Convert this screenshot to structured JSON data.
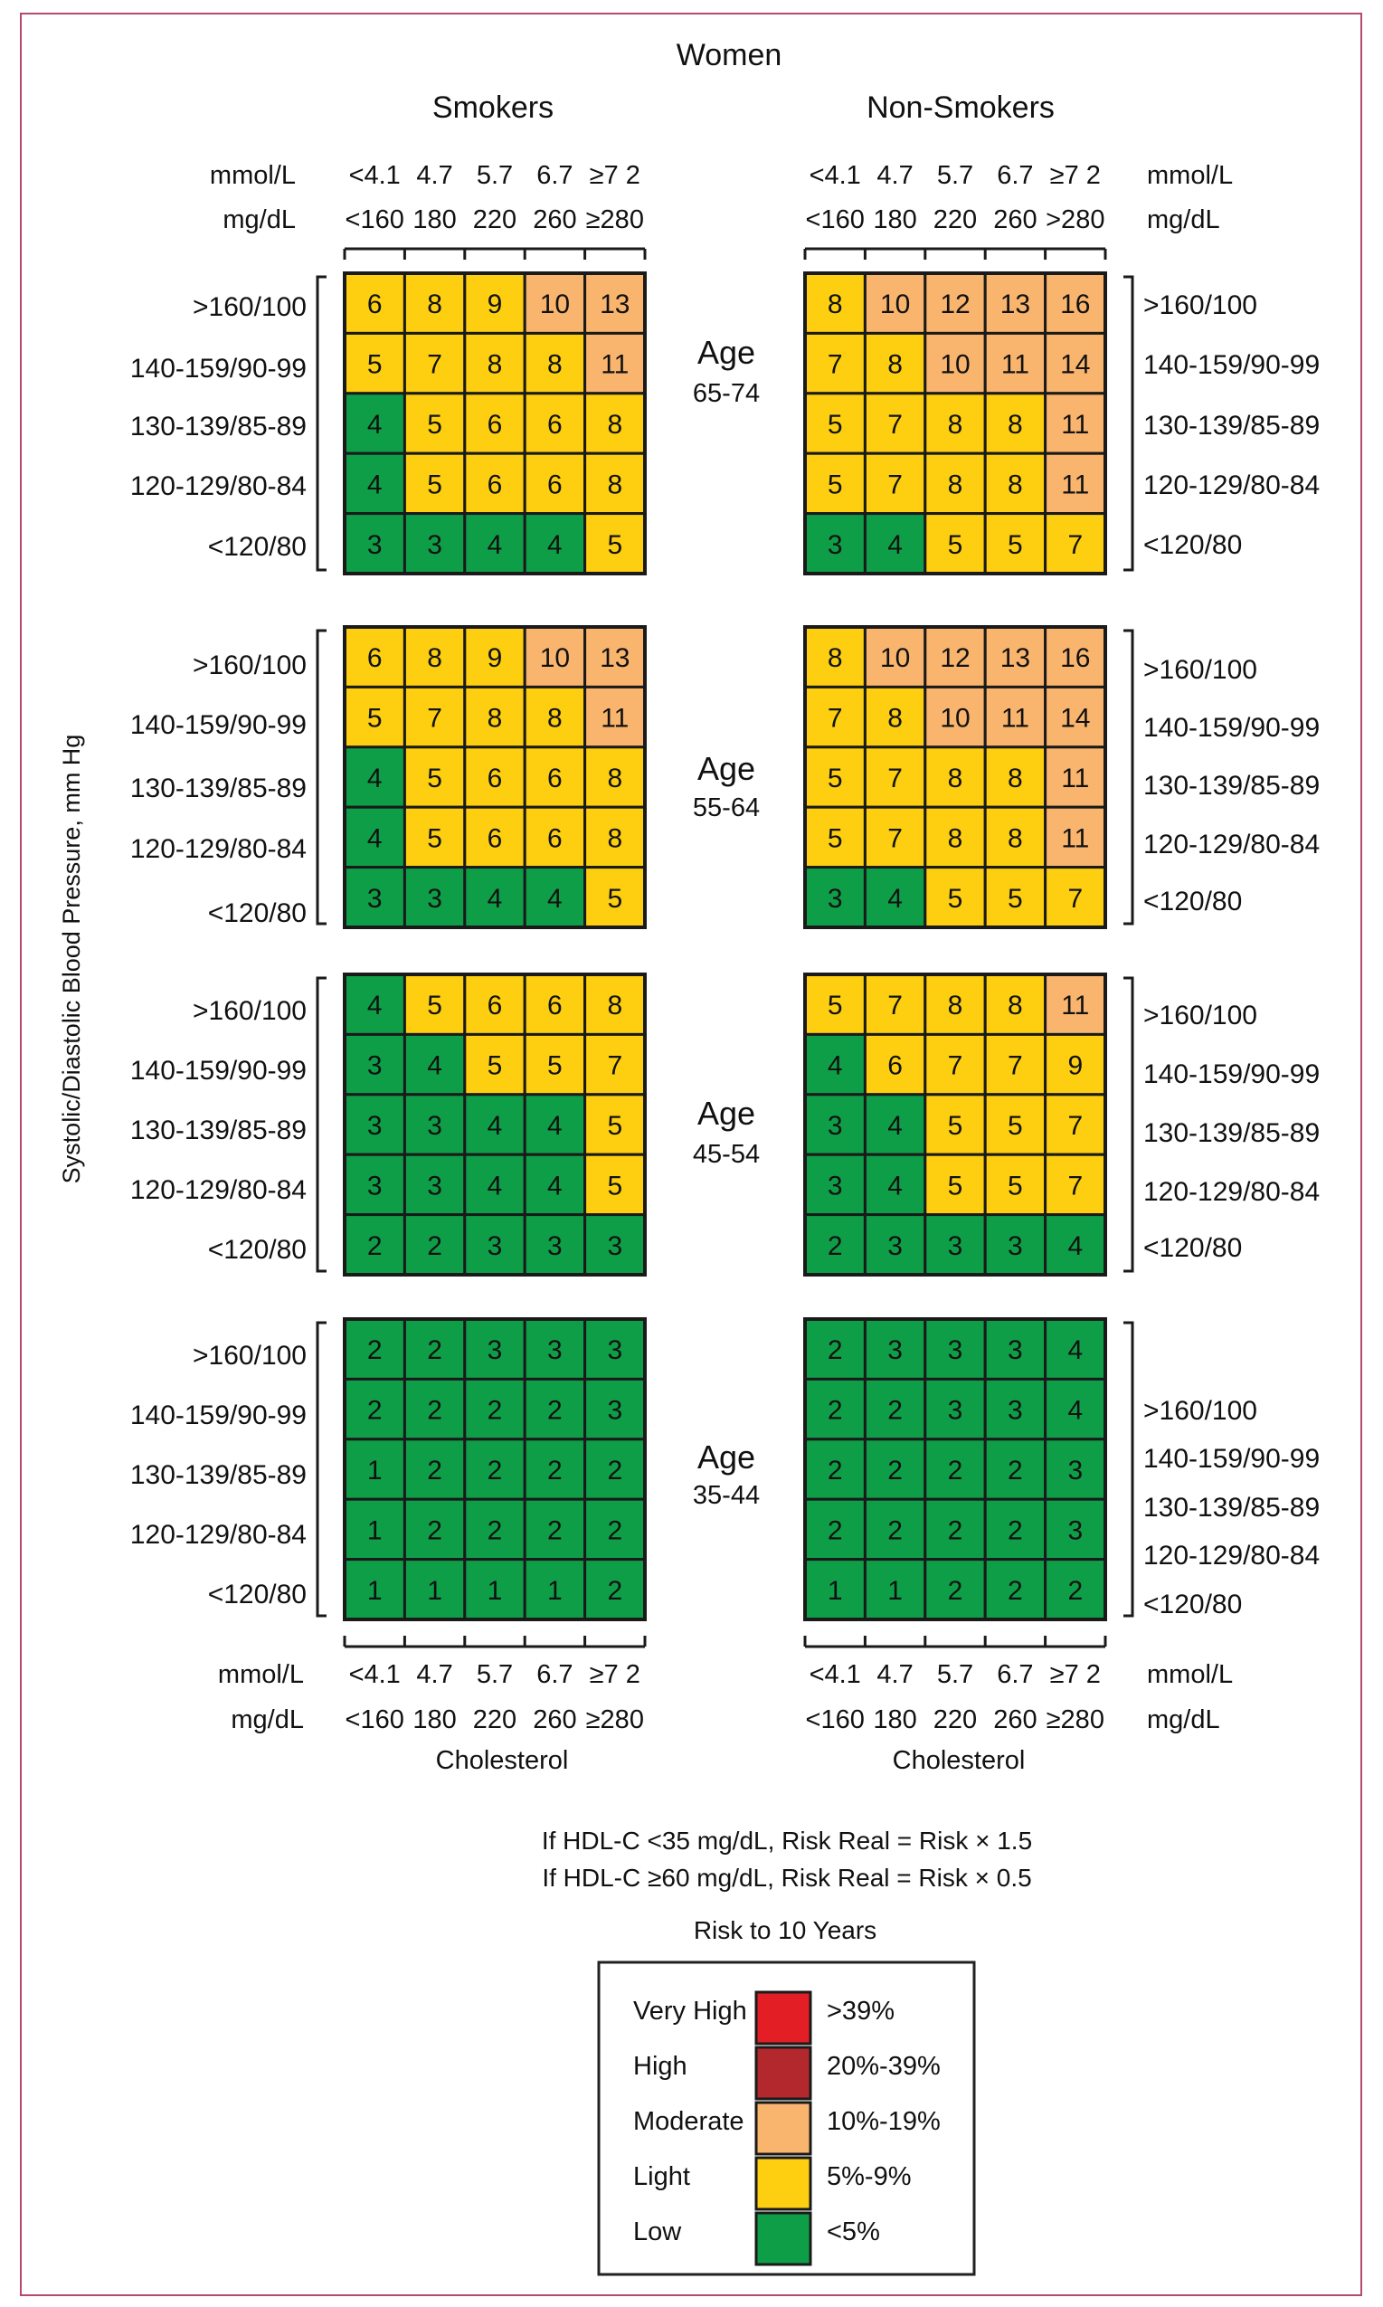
{
  "title": "Women",
  "panel_titles": {
    "smokers": "Smokers",
    "non_smokers": "Non-Smokers"
  },
  "y_axis_label": "Systolic/Diastolic Blood Pressure, mm Hg",
  "x_axis_label": "Cholesterol",
  "units": {
    "mmol": "mmol/L",
    "mgdl": "mg/dL"
  },
  "mmol_ticks": [
    "<4.1",
    "4.7",
    "5.7",
    "6.7",
    "≥7 2"
  ],
  "mgdl_ticks": [
    "<160",
    "180",
    "220",
    "260",
    "≥280"
  ],
  "mgdl_ticks_top_nonsmokers": [
    "<160",
    "180",
    "220",
    "260",
    ">280"
  ],
  "bp_rows": [
    ">160/100",
    "140-159/90-99",
    "130-139/85-89",
    "120-129/80-84",
    "<120/80"
  ],
  "age_word": "Age",
  "age_groups": [
    "65-74",
    "55-64",
    "45-54",
    "35-44"
  ],
  "notes": [
    "If HDL-C <35 mg/dL, Risk Real = Risk × 1.5",
    "If HDL-C ≥60 mg/dL, Risk Real = Risk × 0.5"
  ],
  "legend": {
    "title": "Risk to 10 Years",
    "items": [
      {
        "label": "Very High",
        "range": ">39%",
        "color": "#e31e24"
      },
      {
        "label": "High",
        "range": "20%-39%",
        "color": "#b3282d"
      },
      {
        "label": "Moderate",
        "range": "10%-19%",
        "color": "#f9b56e"
      },
      {
        "label": "Light",
        "range": "5%-9%",
        "color": "#fdcf10"
      },
      {
        "label": "Low",
        "range": "<5%",
        "color": "#0f9e48"
      }
    ]
  },
  "chart_data": {
    "type": "heatmap",
    "title": "Women",
    "xlabel": "Cholesterol",
    "ylabel": "Systolic/Diastolic Blood Pressure, mm Hg",
    "x_categories_mmol": [
      "<4.1",
      "4.7",
      "5.7",
      "6.7",
      "≥7 2"
    ],
    "x_categories_mgdl": [
      "<160",
      "180",
      "220",
      "260",
      "≥280"
    ],
    "y_categories": [
      ">160/100",
      "140-159/90-99",
      "130-139/85-89",
      "120-129/80-84",
      "<120/80"
    ],
    "grids": [
      {
        "group": "Smokers",
        "age": "65-74",
        "values": [
          [
            6,
            8,
            9,
            10,
            13
          ],
          [
            5,
            7,
            8,
            8,
            11
          ],
          [
            4,
            5,
            6,
            6,
            8
          ],
          [
            4,
            5,
            6,
            6,
            8
          ],
          [
            3,
            3,
            4,
            4,
            5
          ]
        ]
      },
      {
        "group": "Non-Smokers",
        "age": "65-74",
        "values": [
          [
            8,
            10,
            12,
            13,
            16
          ],
          [
            7,
            8,
            10,
            11,
            14
          ],
          [
            5,
            7,
            8,
            8,
            11
          ],
          [
            5,
            7,
            8,
            8,
            11
          ],
          [
            3,
            4,
            5,
            5,
            7
          ]
        ]
      },
      {
        "group": "Smokers",
        "age": "55-64",
        "values": [
          [
            6,
            8,
            9,
            10,
            13
          ],
          [
            5,
            7,
            8,
            8,
            11
          ],
          [
            4,
            5,
            6,
            6,
            8
          ],
          [
            4,
            5,
            6,
            6,
            8
          ],
          [
            3,
            3,
            4,
            4,
            5
          ]
        ]
      },
      {
        "group": "Non-Smokers",
        "age": "55-64",
        "values": [
          [
            8,
            10,
            12,
            13,
            16
          ],
          [
            7,
            8,
            10,
            11,
            14
          ],
          [
            5,
            7,
            8,
            8,
            11
          ],
          [
            5,
            7,
            8,
            8,
            11
          ],
          [
            3,
            4,
            5,
            5,
            7
          ]
        ]
      },
      {
        "group": "Smokers",
        "age": "45-54",
        "values": [
          [
            4,
            5,
            6,
            6,
            8
          ],
          [
            3,
            4,
            5,
            5,
            7
          ],
          [
            3,
            3,
            4,
            4,
            5
          ],
          [
            3,
            3,
            4,
            4,
            5
          ],
          [
            2,
            2,
            3,
            3,
            3
          ]
        ]
      },
      {
        "group": "Non-Smokers",
        "age": "45-54",
        "values": [
          [
            5,
            7,
            8,
            8,
            11
          ],
          [
            4,
            6,
            7,
            7,
            9
          ],
          [
            3,
            4,
            5,
            5,
            7
          ],
          [
            3,
            4,
            5,
            5,
            7
          ],
          [
            2,
            3,
            3,
            3,
            4
          ]
        ]
      },
      {
        "group": "Smokers",
        "age": "35-44",
        "values": [
          [
            2,
            2,
            3,
            3,
            3
          ],
          [
            2,
            2,
            2,
            2,
            3
          ],
          [
            1,
            2,
            2,
            2,
            2
          ],
          [
            1,
            2,
            2,
            2,
            2
          ],
          [
            1,
            1,
            1,
            1,
            2
          ]
        ]
      },
      {
        "group": "Non-Smokers",
        "age": "35-44",
        "values": [
          [
            2,
            3,
            3,
            3,
            4
          ],
          [
            2,
            2,
            3,
            3,
            4
          ],
          [
            2,
            2,
            2,
            2,
            3
          ],
          [
            2,
            2,
            2,
            2,
            3
          ],
          [
            1,
            1,
            2,
            2,
            2
          ]
        ]
      }
    ],
    "color_scale": [
      {
        "min": 0,
        "max": 4,
        "category": "Low",
        "color": "#0f9e48"
      },
      {
        "min": 5,
        "max": 9,
        "category": "Light",
        "color": "#fdcf10"
      },
      {
        "min": 10,
        "max": 19,
        "category": "Moderate",
        "color": "#f9b56e"
      },
      {
        "min": 20,
        "max": 39,
        "category": "High",
        "color": "#b3282d"
      },
      {
        "min": 40,
        "max": 100,
        "category": "Very High",
        "color": "#e31e24"
      }
    ],
    "legend": "bottom-center"
  }
}
